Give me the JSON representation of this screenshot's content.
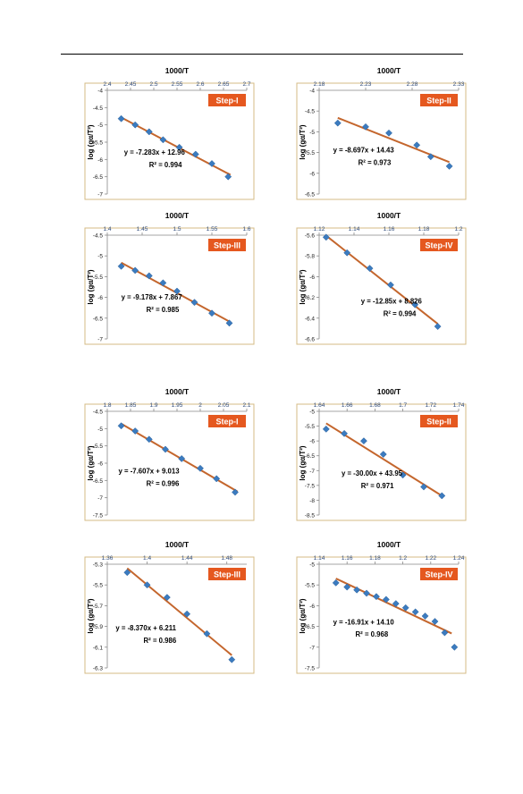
{
  "colors": {
    "marker": "#3b7bbf",
    "fit_line": "#c4662d",
    "step_label_bg": "#e5581f",
    "step_label_text": "#ffffff",
    "frame": "#d4bb86",
    "axis_text": "#2e4a7a"
  },
  "chart_data": [
    {
      "type": "scatter",
      "xlabel": "1000/T",
      "ylabel": "log (gα/T²)",
      "step": "Step-I",
      "xlim": [
        2.4,
        2.7
      ],
      "ylim": [
        -7,
        -4
      ],
      "xticks": [
        "2.4",
        "2.45",
        "2.5",
        "2.55",
        "2.6",
        "2.65",
        "2.7"
      ],
      "yticks": [
        "-4",
        "-4.5",
        "-5",
        "-5.5",
        "-6",
        "-6.5",
        "-7"
      ],
      "points": {
        "x": [
          2.43,
          2.46,
          2.49,
          2.52,
          2.555,
          2.59,
          2.625,
          2.66
        ],
        "y": [
          -4.82,
          -5.0,
          -5.2,
          -5.43,
          -5.65,
          -5.85,
          -6.12,
          -6.5
        ]
      },
      "fit": {
        "slope": -7.283,
        "intercept": 12.96,
        "x_range": [
          2.43,
          2.665
        ]
      },
      "equation": "y = -7.283x + 12.96",
      "r2": "R² = 0.994"
    },
    {
      "type": "scatter",
      "xlabel": "1000/T",
      "ylabel": "log (gα/T²)",
      "step": "Step-II",
      "xlim": [
        2.18,
        2.33
      ],
      "ylim": [
        -6.5,
        -4
      ],
      "xticks": [
        "2.18",
        "2.23",
        "2.28",
        "2.33"
      ],
      "yticks": [
        "-4",
        "-4.5",
        "-5",
        "-5.5",
        "-6",
        "-6.5"
      ],
      "points": {
        "x": [
          2.2,
          2.23,
          2.255,
          2.285,
          2.3,
          2.32
        ],
        "y": [
          -4.79,
          -4.88,
          -5.03,
          -5.32,
          -5.6,
          -5.83
        ]
      },
      "fit": {
        "slope": -8.697,
        "intercept": 14.43,
        "x_range": [
          2.2,
          2.32
        ]
      },
      "equation": "y = -8.697x + 14.43",
      "r2": "R² = 0.973"
    },
    {
      "type": "scatter",
      "xlabel": "1000/T",
      "ylabel": "log (gα/T²)",
      "step": "Step-III",
      "xlim": [
        1.4,
        1.6
      ],
      "ylim": [
        -7,
        -4.5
      ],
      "xticks": [
        "1.4",
        "1.45",
        "1.5",
        "1.55",
        "1.6"
      ],
      "yticks": [
        "-4.5",
        "-5",
        "-5.5",
        "-6",
        "-6.5",
        "-7"
      ],
      "points": {
        "x": [
          1.42,
          1.44,
          1.46,
          1.48,
          1.5,
          1.525,
          1.55,
          1.575
        ],
        "y": [
          -5.25,
          -5.35,
          -5.48,
          -5.65,
          -5.85,
          -6.12,
          -6.38,
          -6.62
        ]
      },
      "fit": {
        "slope": -9.178,
        "intercept": 7.867,
        "x_range": [
          1.42,
          1.575
        ]
      },
      "equation": "y = -9.178x + 7.867",
      "r2": "R² = 0.985"
    },
    {
      "type": "scatter",
      "xlabel": "1000/T",
      "ylabel": "log (gα/T²)",
      "step": "Step-IV",
      "xlim": [
        1.12,
        1.2
      ],
      "ylim": [
        -6.6,
        -5.6
      ],
      "xticks": [
        "1.12",
        "1.14",
        "1.16",
        "1.18",
        "1.2"
      ],
      "yticks": [
        "-5.6",
        "-5.8",
        "-6",
        "-6.2",
        "-6.4",
        "-6.6"
      ],
      "points": {
        "x": [
          1.124,
          1.136,
          1.149,
          1.161,
          1.175,
          1.188
        ],
        "y": [
          -5.62,
          -5.77,
          -5.92,
          -6.08,
          -6.27,
          -6.48
        ]
      },
      "fit": {
        "slope": -12.85,
        "intercept": 8.826,
        "x_range": [
          1.124,
          1.188
        ]
      },
      "equation": "y = -12.85x + 8.826",
      "r2": "R² = 0.994"
    },
    {
      "type": "scatter",
      "xlabel": "1000/T",
      "ylabel": "log (gα/T²)",
      "step": "Step-I",
      "xlim": [
        1.8,
        2.1
      ],
      "ylim": [
        -7.5,
        -4.5
      ],
      "xticks": [
        "1.8",
        "1.85",
        "1.9",
        "1.95",
        "2",
        "2.05",
        "2.1"
      ],
      "yticks": [
        "-4.5",
        "-5",
        "-5.5",
        "-6",
        "-6.5",
        "-7",
        "-7.5"
      ],
      "points": {
        "x": [
          1.83,
          1.86,
          1.89,
          1.925,
          1.96,
          2.0,
          2.035,
          2.075
        ],
        "y": [
          -4.92,
          -5.07,
          -5.31,
          -5.6,
          -5.87,
          -6.15,
          -6.45,
          -6.84
        ]
      },
      "fit": {
        "slope": -7.607,
        "intercept": 9.013,
        "x_range": [
          1.83,
          2.08
        ]
      },
      "equation": "y = -7.607x + 9.013",
      "r2": "R² = 0.996"
    },
    {
      "type": "scatter",
      "xlabel": "1000/T",
      "ylabel": "log (gα/T²)",
      "step": "Step-II",
      "xlim": [
        1.64,
        1.74
      ],
      "ylim": [
        -8.5,
        -5
      ],
      "xticks": [
        "1.64",
        "1.66",
        "1.68",
        "1.7",
        "1.72",
        "1.74"
      ],
      "yticks": [
        "-5",
        "-5.5",
        "-6",
        "-6.5",
        "-7",
        "-7.5",
        "-8",
        "-8.5"
      ],
      "points": {
        "x": [
          1.645,
          1.658,
          1.672,
          1.686,
          1.7,
          1.715,
          1.728
        ],
        "y": [
          -5.6,
          -5.75,
          -6.0,
          -6.45,
          -7.15,
          -7.55,
          -7.85
        ]
      },
      "fit": {
        "slope": -30.0,
        "intercept": 43.95,
        "x_range": [
          1.645,
          1.728
        ]
      },
      "equation": "y = -30.00x + 43.95",
      "r2": "R² = 0.971"
    },
    {
      "type": "scatter",
      "xlabel": "1000/T",
      "ylabel": "log (gα/T²)",
      "step": "Step-III",
      "xlim": [
        1.36,
        1.5
      ],
      "ylim": [
        -6.3,
        -5.3
      ],
      "xticks": [
        "1.36",
        "1.4",
        "1.44",
        "1.48"
      ],
      "yticks": [
        "-5.3",
        "-5.5",
        "-5.7",
        "-5.9",
        "-6.1",
        "-6.3"
      ],
      "points": {
        "x": [
          1.38,
          1.4,
          1.42,
          1.44,
          1.46,
          1.485
        ],
        "y": [
          -5.38,
          -5.5,
          -5.62,
          -5.78,
          -5.97,
          -6.22
        ]
      },
      "fit": {
        "slope": -8.37,
        "intercept": 6.211,
        "x_range": [
          1.38,
          1.485
        ]
      },
      "equation": "y = -8.370x + 6.211",
      "r2": "R² = 0.986"
    },
    {
      "type": "scatter",
      "xlabel": "1000/T",
      "ylabel": "log (gα/T²)",
      "step": "Step-IV",
      "xlim": [
        1.14,
        1.24
      ],
      "ylim": [
        -7.5,
        -5
      ],
      "xticks": [
        "1.14",
        "1.16",
        "1.18",
        "1.2",
        "1.22",
        "1.24"
      ],
      "yticks": [
        "-5",
        "-5.5",
        "-6",
        "-6.5",
        "-7",
        "-7.5"
      ],
      "points": {
        "x": [
          1.152,
          1.16,
          1.167,
          1.174,
          1.181,
          1.188,
          1.195,
          1.202,
          1.209,
          1.216,
          1.223,
          1.23,
          1.237
        ],
        "y": [
          -5.45,
          -5.55,
          -5.62,
          -5.7,
          -5.78,
          -5.85,
          -5.95,
          -6.05,
          -6.15,
          -6.25,
          -6.38,
          -6.65,
          -7.0
        ]
      },
      "fit": {
        "slope": -16.91,
        "intercept": 14.1,
        "x_range": [
          1.152,
          1.235
        ]
      },
      "equation": "y = -16.91x + 14.10",
      "r2": "R² = 0.968"
    }
  ]
}
